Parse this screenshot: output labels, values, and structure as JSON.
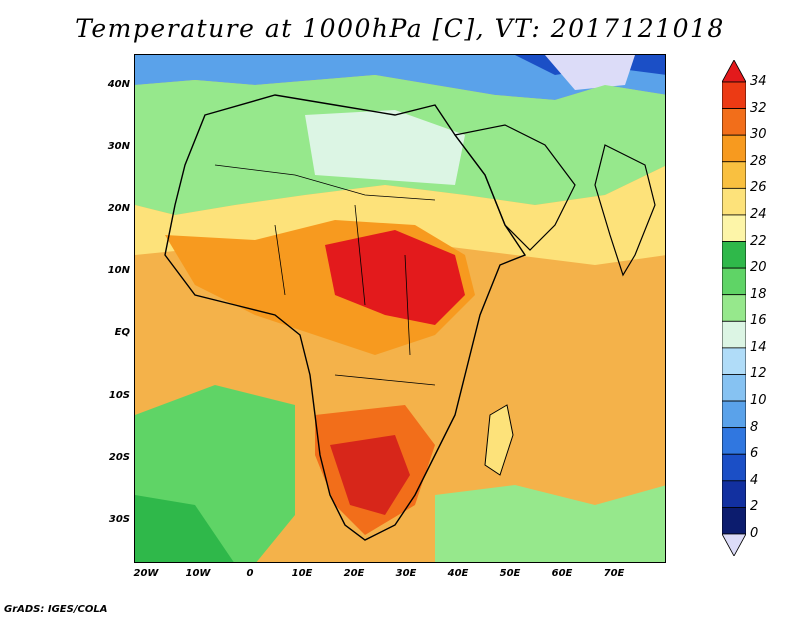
{
  "title": "Temperature at 1000hPa [C], VT: 2017121018",
  "credit": "GrADS: IGES/COLA",
  "map": {
    "lat_ticks": [
      "40N",
      "30N",
      "20N",
      "10N",
      "EQ",
      "10S",
      "20S",
      "30S"
    ],
    "lon_ticks": [
      "20W",
      "10W",
      "0",
      "10E",
      "20E",
      "30E",
      "40E",
      "50E",
      "60E",
      "70E"
    ],
    "lat_range": [
      -36,
      45
    ],
    "lon_range": [
      -22,
      80
    ]
  },
  "colorbar": {
    "labels": [
      "34",
      "32",
      "30",
      "28",
      "26",
      "24",
      "22",
      "20",
      "18",
      "16",
      "14",
      "12",
      "10",
      "8",
      "6",
      "4",
      "2",
      "0"
    ],
    "colors": [
      "#e31a1c",
      "#ec3a14",
      "#f26e1a",
      "#f79a1f",
      "#f9c040",
      "#fde27a",
      "#fdf5a8",
      "#2fb84a",
      "#5fd466",
      "#96e88c",
      "#dcf5e4",
      "#b0dcf8",
      "#86c2f2",
      "#5aa2ea",
      "#3077e0",
      "#1b4fc6",
      "#1230a0",
      "#0c1c6e",
      "#dcdcf8"
    ]
  }
}
